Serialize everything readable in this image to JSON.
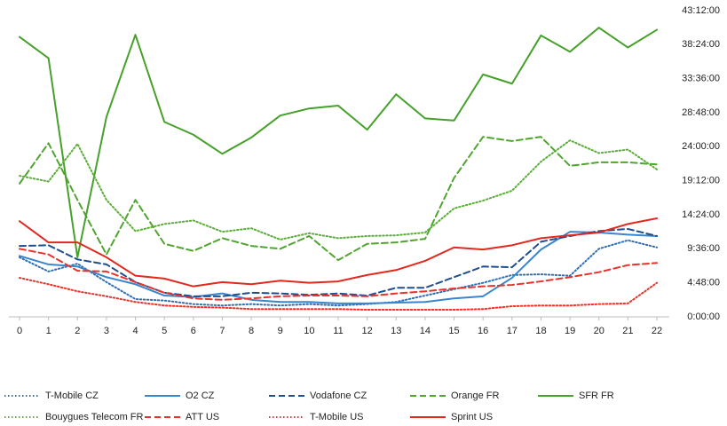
{
  "chart_data": {
    "type": "line",
    "x": [
      0,
      1,
      2,
      3,
      4,
      5,
      6,
      7,
      8,
      9,
      10,
      11,
      12,
      13,
      14,
      15,
      16,
      17,
      18,
      19,
      20,
      21,
      22
    ],
    "xlim": [
      0,
      22
    ],
    "xticks": [
      0,
      1,
      2,
      3,
      4,
      5,
      6,
      7,
      8,
      9,
      10,
      11,
      12,
      13,
      14,
      15,
      16,
      17,
      18,
      19,
      20,
      21,
      22
    ],
    "ylim": [
      0,
      43.2
    ],
    "yticks": [
      {
        "value": 0,
        "label": "0:00:00"
      },
      {
        "value": 4.8,
        "label": "4:48:00"
      },
      {
        "value": 9.6,
        "label": "9:36:00"
      },
      {
        "value": 14.4,
        "label": "14:24:00"
      },
      {
        "value": 19.2,
        "label": "19:12:00"
      },
      {
        "value": 24,
        "label": "24:00:00"
      },
      {
        "value": 28.8,
        "label": "28:48:00"
      },
      {
        "value": 33.6,
        "label": "33:36:00"
      },
      {
        "value": 38.4,
        "label": "38:24:00"
      },
      {
        "value": 43.2,
        "label": "43:12:00"
      }
    ],
    "y_axis_side": "right",
    "grid": false,
    "legend": "bottom",
    "series": [
      {
        "name": "T-Mobile CZ",
        "color": "#2f6eb5",
        "dash": "dotted",
        "values": [
          8.4,
          6.4,
          7.5,
          4.9,
          2.5,
          2.3,
          1.8,
          1.6,
          1.8,
          1.6,
          1.8,
          1.6,
          1.8,
          2.1,
          3.0,
          3.9,
          4.8,
          5.9,
          6.0,
          5.8,
          9.6,
          10.8,
          9.8
        ]
      },
      {
        "name": "O2 CZ",
        "color": "#3a86cc",
        "dash": "solid",
        "values": [
          8.6,
          7.4,
          7.1,
          5.6,
          4.6,
          3.0,
          2.8,
          3.3,
          2.4,
          2.1,
          2.1,
          1.9,
          1.9,
          2.0,
          2.1,
          2.6,
          2.9,
          5.5,
          9.5,
          12.0,
          11.9,
          11.6,
          11.4
        ]
      },
      {
        "name": "Vodafone CZ",
        "color": "#1f4f8f",
        "dash": "dashed",
        "values": [
          10.0,
          10.1,
          8.1,
          7.4,
          4.9,
          3.4,
          2.9,
          2.9,
          3.4,
          3.3,
          3.1,
          3.3,
          3.0,
          4.1,
          4.1,
          5.6,
          7.1,
          7.0,
          10.6,
          11.4,
          12.1,
          12.4,
          11.4
        ]
      },
      {
        "name": "Orange FR",
        "color": "#4fa52f",
        "dash": "dashed",
        "values": [
          18.8,
          24.5,
          16.5,
          8.8,
          16.5,
          10.3,
          9.3,
          11.1,
          10.0,
          9.6,
          11.4,
          8.0,
          10.3,
          10.5,
          11.0,
          19.6,
          25.4,
          24.8,
          25.4,
          21.3,
          21.8,
          21.8,
          21.5
        ]
      },
      {
        "name": "SFR FR",
        "color": "#45a12a",
        "dash": "solid",
        "values": [
          39.5,
          36.5,
          8.4,
          28.2,
          39.8,
          27.5,
          25.7,
          23.0,
          25.3,
          28.4,
          29.4,
          29.8,
          26.4,
          31.4,
          28.0,
          27.7,
          34.2,
          32.9,
          39.7,
          37.4,
          40.8,
          38.0,
          40.5
        ]
      },
      {
        "name": "Bouygues Telecom FR",
        "color": "#5aae38",
        "dash": "dotted",
        "values": [
          19.9,
          19.1,
          24.4,
          16.5,
          12.1,
          13.1,
          13.6,
          12.0,
          12.5,
          10.9,
          11.8,
          11.1,
          11.4,
          11.5,
          11.9,
          15.3,
          16.4,
          17.8,
          21.9,
          24.9,
          23.1,
          23.6,
          20.8
        ]
      },
      {
        "name": "ATT US",
        "color": "#e8322b",
        "dash": "dashed",
        "values": [
          9.6,
          8.8,
          6.5,
          6.4,
          4.9,
          3.4,
          2.6,
          2.4,
          2.6,
          2.9,
          3.0,
          3.0,
          2.9,
          3.3,
          3.6,
          4.0,
          4.3,
          4.5,
          5.0,
          5.6,
          6.3,
          7.3,
          7.6
        ]
      },
      {
        "name": "T-Mobile US",
        "color": "#e8322b",
        "dash": "dotted",
        "values": [
          5.5,
          4.6,
          3.6,
          2.9,
          2.1,
          1.6,
          1.4,
          1.3,
          1.1,
          1.1,
          1.1,
          1.1,
          1.0,
          1.0,
          1.0,
          1.0,
          1.1,
          1.5,
          1.6,
          1.6,
          1.8,
          1.9,
          4.8
        ]
      },
      {
        "name": "Sprint US",
        "color": "#e2281f",
        "dash": "solid",
        "values": [
          13.5,
          10.5,
          10.5,
          8.4,
          5.8,
          5.4,
          4.3,
          4.9,
          4.6,
          5.1,
          4.8,
          5.0,
          5.9,
          6.6,
          7.9,
          9.8,
          9.5,
          10.1,
          11.1,
          11.5,
          11.9,
          13.1,
          13.9
        ]
      }
    ]
  }
}
